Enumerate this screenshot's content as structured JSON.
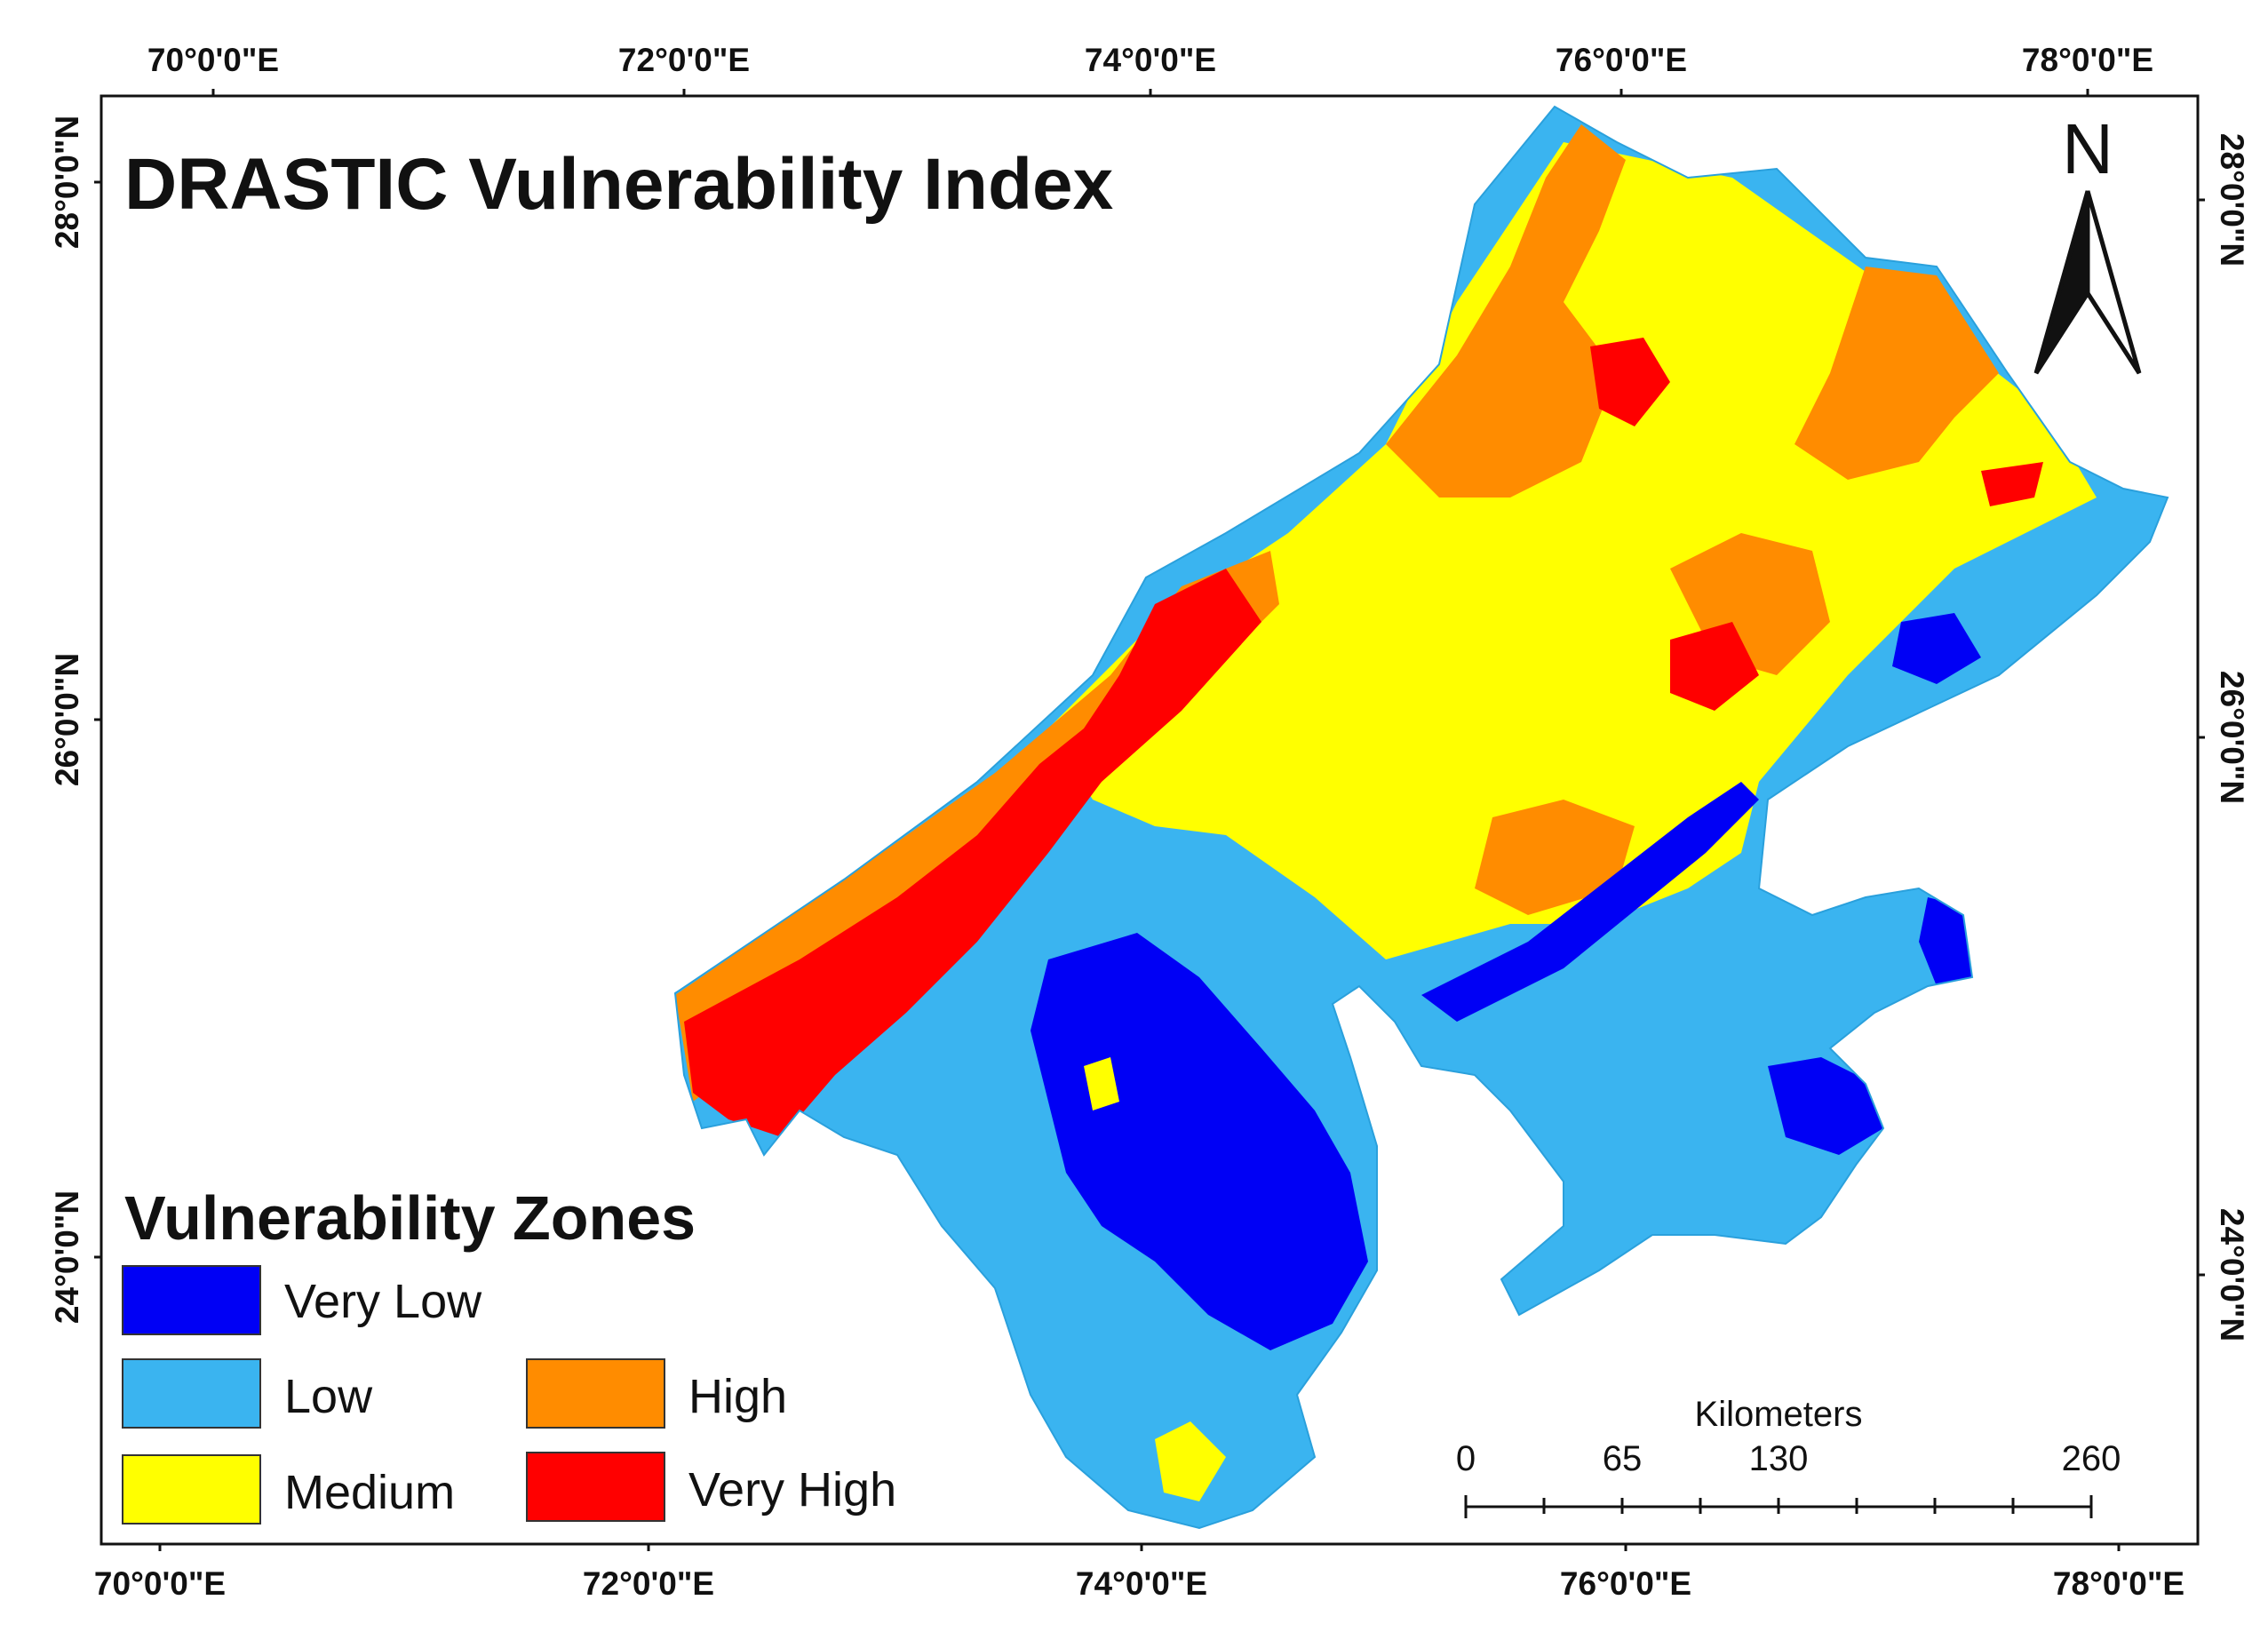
{
  "title": "DRASTIC Vulnerability Index",
  "grid": {
    "lon_labels": [
      "70°0'0\"E",
      "72°0'0\"E",
      "74°0'0\"E",
      "76°0'0\"E",
      "78°0'0\"E"
    ],
    "lat_labels": [
      "28°0'0\"N",
      "26°0'0\"N",
      "24°0'0\"N"
    ]
  },
  "north_arrow": {
    "label": "N",
    "icon": "north-arrow-icon"
  },
  "legend": {
    "title": "Vulnerability Zones",
    "items": [
      {
        "label": "Very Low",
        "color": "#0000f5"
      },
      {
        "label": "Low",
        "color": "#3ab4f0"
      },
      {
        "label": "Medium",
        "color": "#ffff00"
      },
      {
        "label": "High",
        "color": "#ff8c00"
      },
      {
        "label": "Very High",
        "color": "#ff0000"
      }
    ]
  },
  "scale_bar": {
    "units": "Kilometers",
    "labels": [
      "0",
      "65",
      "130",
      "260"
    ]
  }
}
